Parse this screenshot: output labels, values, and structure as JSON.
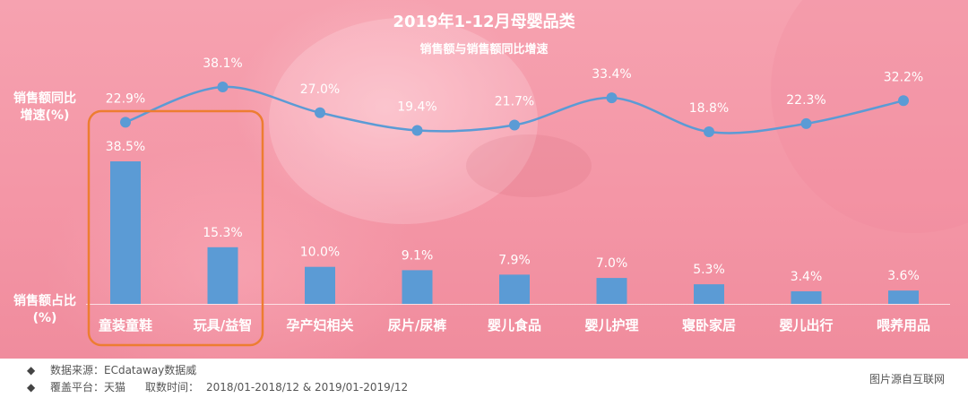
{
  "header": {
    "title": "2019年1-12月母婴品类",
    "subtitle": "销售额与销售额同比增速"
  },
  "axis_labels": {
    "growth_line1": "销售额同比",
    "growth_line2": "增速(%)",
    "share_line1": "销售额占比",
    "share_line2": "(%)"
  },
  "footer": {
    "bullet": "◆",
    "source_label": "数据来源：ECdataway数据威",
    "platform_label": "覆盖平台：天猫",
    "period_label": "取数时间：",
    "period_value": "2018/01-2018/12 & 2019/01-2019/12",
    "credit": "图片源自互联网"
  },
  "colors": {
    "bar": "#5b9bd5",
    "line": "#5b9bd5",
    "highlight_box": "#ed7d31",
    "text": "#ffffff",
    "background": "#f498a8"
  },
  "chart_data": {
    "type": "bar+line",
    "title": "2019年1-12月母婴品类",
    "subtitle": "销售额与销售额同比增速",
    "categories": [
      "童装童鞋",
      "玩具/益智",
      "孕产妇相关",
      "尿片/尿裤",
      "婴儿食品",
      "婴儿护理",
      "寝卧家居",
      "婴儿出行",
      "喂养用品"
    ],
    "series": [
      {
        "name": "销售额占比(%)",
        "type": "bar",
        "values": [
          38.5,
          15.3,
          10.0,
          9.1,
          7.9,
          7.0,
          5.3,
          3.4,
          3.6
        ],
        "labels": [
          "38.5%",
          "15.3%",
          "10.0%",
          "9.1%",
          "7.9%",
          "7.0%",
          "5.3%",
          "3.4%",
          "3.6%"
        ]
      },
      {
        "name": "销售额同比增速(%)",
        "type": "line",
        "values": [
          22.9,
          38.1,
          27.0,
          19.4,
          21.7,
          33.4,
          18.8,
          22.3,
          32.2
        ],
        "labels": [
          "22.9%",
          "38.1%",
          "27.0%",
          "19.4%",
          "21.7%",
          "33.4%",
          "18.8%",
          "22.3%",
          "32.2%"
        ]
      }
    ],
    "ylabel_left_top": "销售额同比增速(%)",
    "ylabel_left_bottom": "销售额占比(%)",
    "highlighted_categories": [
      "童装童鞋",
      "玩具/益智"
    ],
    "grid": false,
    "legend": "none"
  }
}
